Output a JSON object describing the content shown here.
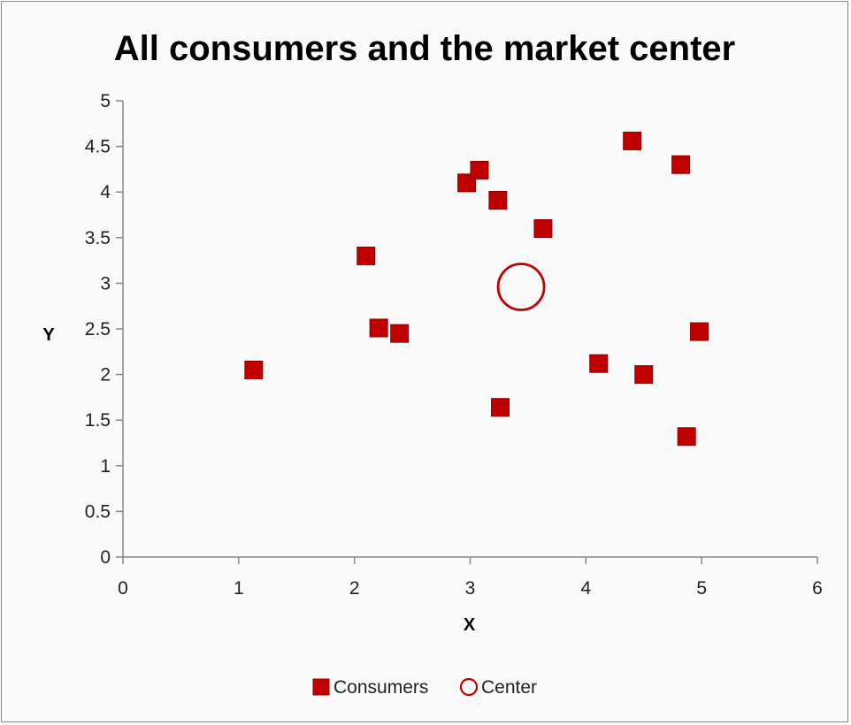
{
  "chart_data": {
    "type": "scatter",
    "title": "All consumers and the market center",
    "xlabel": "X",
    "ylabel": "Y",
    "xlim": [
      0,
      6
    ],
    "ylim": [
      0,
      5
    ],
    "xticks": [
      0,
      1,
      2,
      3,
      4,
      5,
      6
    ],
    "yticks": [
      0,
      0.5,
      1,
      1.5,
      2,
      2.5,
      3,
      3.5,
      4,
      4.5,
      5
    ],
    "grid": false,
    "legend": "bottom",
    "series": [
      {
        "name": "Consumers",
        "marker": "square",
        "color": "#c00000",
        "points": [
          {
            "x": 1.13,
            "y": 2.05
          },
          {
            "x": 2.1,
            "y": 3.3
          },
          {
            "x": 2.21,
            "y": 2.51
          },
          {
            "x": 2.39,
            "y": 2.45
          },
          {
            "x": 2.97,
            "y": 4.1
          },
          {
            "x": 3.08,
            "y": 4.24
          },
          {
            "x": 3.24,
            "y": 3.91
          },
          {
            "x": 3.26,
            "y": 1.64
          },
          {
            "x": 3.63,
            "y": 3.6
          },
          {
            "x": 4.11,
            "y": 2.12
          },
          {
            "x": 4.4,
            "y": 4.56
          },
          {
            "x": 4.5,
            "y": 2.0
          },
          {
            "x": 4.82,
            "y": 4.3
          },
          {
            "x": 4.87,
            "y": 1.32
          },
          {
            "x": 4.98,
            "y": 2.47
          }
        ]
      },
      {
        "name": "Center",
        "marker": "circle-open",
        "color": "#c00000",
        "points": [
          {
            "x": 3.44,
            "y": 2.96
          }
        ]
      }
    ]
  }
}
